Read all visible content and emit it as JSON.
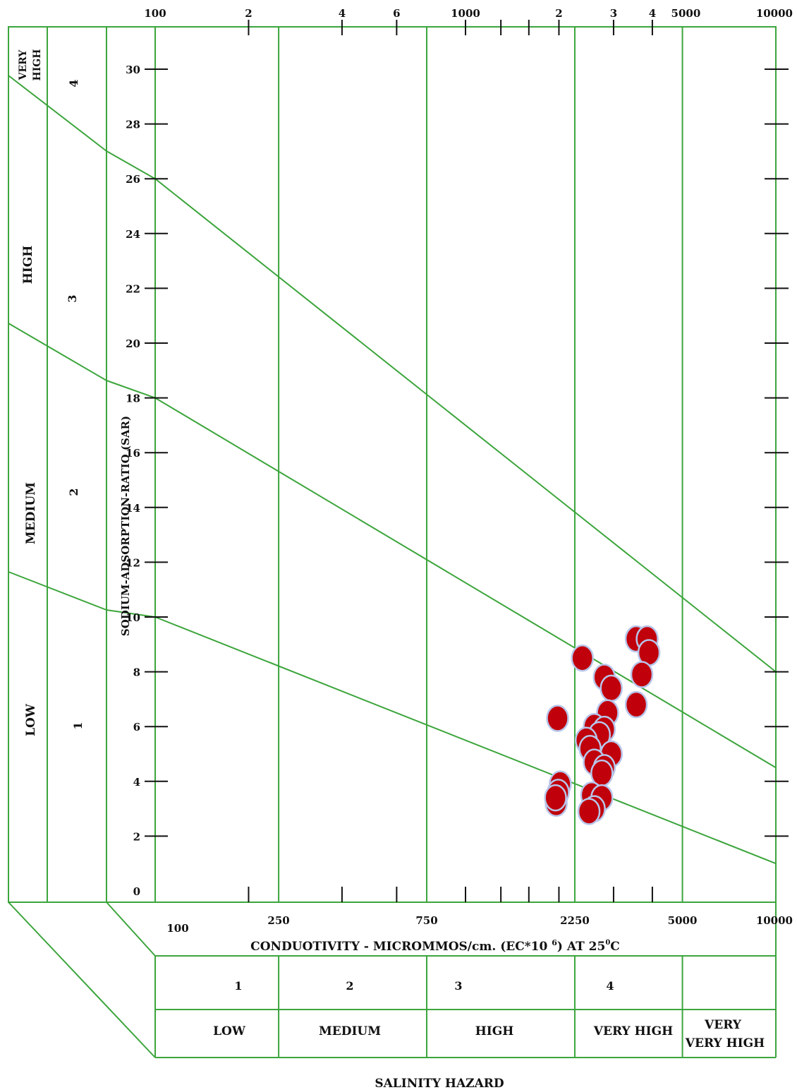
{
  "chart_data": {
    "type": "scatter",
    "title": "",
    "xlabel": "CONDUOTIVITY - MICROMMOS/cm. (EC*10 6) AT 25 °C",
    "x_title_parts": {
      "main": "CONDUOTIVITY - MICROMMOS/cm. (EC*10",
      "exp": "6",
      "tail": ") AT 25",
      "deg": "0",
      "unit": "C"
    },
    "ylabel": "SODIUM-ADSORPTION-RATIO (SAR)",
    "x_scale": "log",
    "xlim": [
      100,
      10000
    ],
    "ylim": [
      0,
      32
    ],
    "grid": false,
    "legend": "none",
    "colors": {
      "lines": "#3ca53c",
      "points": "#c0000a",
      "point_edge": "#b8c6ea",
      "ticks": "#111111"
    },
    "x_top_tick_labels": [
      {
        "value": 100,
        "label": "100"
      },
      {
        "value": 200,
        "label": "2"
      },
      {
        "value": 400,
        "label": "4"
      },
      {
        "value": 600,
        "label": "6"
      },
      {
        "value": 1000,
        "label": "1000"
      },
      {
        "value": 2000,
        "label": "2"
      },
      {
        "value": 3000,
        "label": "3"
      },
      {
        "value": 4000,
        "label": "4"
      },
      {
        "value": 5000,
        "label": "5000"
      },
      {
        "value": 10000,
        "label": "10000"
      }
    ],
    "x_top_minor_ticks": [
      1300,
      1600
    ],
    "x_bottom_tick_labels": [
      {
        "value": 100,
        "label": "100"
      },
      {
        "value": 250,
        "label": "250"
      },
      {
        "value": 750,
        "label": "750"
      },
      {
        "value": 2250,
        "label": "2250"
      },
      {
        "value": 5000,
        "label": "5000"
      },
      {
        "value": 10000,
        "label": "10000"
      }
    ],
    "x_bottom_ticks": [
      200,
      400,
      600,
      1000,
      1300,
      1600,
      2000,
      3000,
      4000
    ],
    "y_ticks": [
      {
        "value": 0,
        "label": "0"
      },
      {
        "value": 2,
        "label": "2"
      },
      {
        "value": 4,
        "label": "4"
      },
      {
        "value": 6,
        "label": "6"
      },
      {
        "value": 8,
        "label": "8"
      },
      {
        "value": 10,
        "label": "10"
      },
      {
        "value": 12,
        "label": "12"
      },
      {
        "value": 14,
        "label": "14"
      },
      {
        "value": 16,
        "label": "16"
      },
      {
        "value": 18,
        "label": "18"
      },
      {
        "value": 20,
        "label": "20"
      },
      {
        "value": 22,
        "label": "22"
      },
      {
        "value": 24,
        "label": "24"
      },
      {
        "value": 26,
        "label": "26"
      },
      {
        "value": 28,
        "label": "28"
      },
      {
        "value": 30,
        "label": "30"
      }
    ],
    "salinity_boundaries": [
      250,
      750,
      2250,
      5000
    ],
    "sodium_hazard_lines": [
      {
        "y_at_100": 10.0,
        "y_at_10000": 1.0
      },
      {
        "y_at_100": 18.0,
        "y_at_10000": 4.5
      },
      {
        "y_at_100": 26.0,
        "y_at_10000": 8.0
      }
    ],
    "sodium_hazard_classes": [
      {
        "number": "1",
        "name": "LOW"
      },
      {
        "number": "2",
        "name": "MEDIUM"
      },
      {
        "number": "3",
        "name": "HIGH"
      },
      {
        "number": "4",
        "name": "VERY HIGH"
      }
    ],
    "salinity_hazard_title": "SALINITY HAZARD",
    "salinity_hazard_classes": [
      {
        "number": "1",
        "name": "LOW"
      },
      {
        "number": "2",
        "name": "MEDIUM"
      },
      {
        "number": "3",
        "name": "HIGH"
      },
      {
        "number": "4",
        "name": "VERY HIGH"
      },
      {
        "number": "",
        "name": "VERY VERY HIGH"
      }
    ],
    "points": [
      {
        "x": 1980,
        "y": 6.3
      },
      {
        "x": 2020,
        "y": 3.9
      },
      {
        "x": 1990,
        "y": 3.6
      },
      {
        "x": 1960,
        "y": 3.2
      },
      {
        "x": 1950,
        "y": 3.4
      },
      {
        "x": 2380,
        "y": 8.5
      },
      {
        "x": 2800,
        "y": 7.8
      },
      {
        "x": 2950,
        "y": 7.4
      },
      {
        "x": 3550,
        "y": 9.2
      },
      {
        "x": 3850,
        "y": 9.2
      },
      {
        "x": 3900,
        "y": 8.7
      },
      {
        "x": 3700,
        "y": 7.9
      },
      {
        "x": 3550,
        "y": 6.8
      },
      {
        "x": 2870,
        "y": 6.5
      },
      {
        "x": 2600,
        "y": 6.0
      },
      {
        "x": 2800,
        "y": 5.9
      },
      {
        "x": 2700,
        "y": 5.7
      },
      {
        "x": 2450,
        "y": 5.5
      },
      {
        "x": 2520,
        "y": 5.2
      },
      {
        "x": 2950,
        "y": 5.0
      },
      {
        "x": 2600,
        "y": 4.7
      },
      {
        "x": 2800,
        "y": 4.5
      },
      {
        "x": 2750,
        "y": 4.3
      },
      {
        "x": 2550,
        "y": 3.5
      },
      {
        "x": 2750,
        "y": 3.4
      },
      {
        "x": 2600,
        "y": 3.0
      },
      {
        "x": 2500,
        "y": 2.9
      }
    ]
  }
}
